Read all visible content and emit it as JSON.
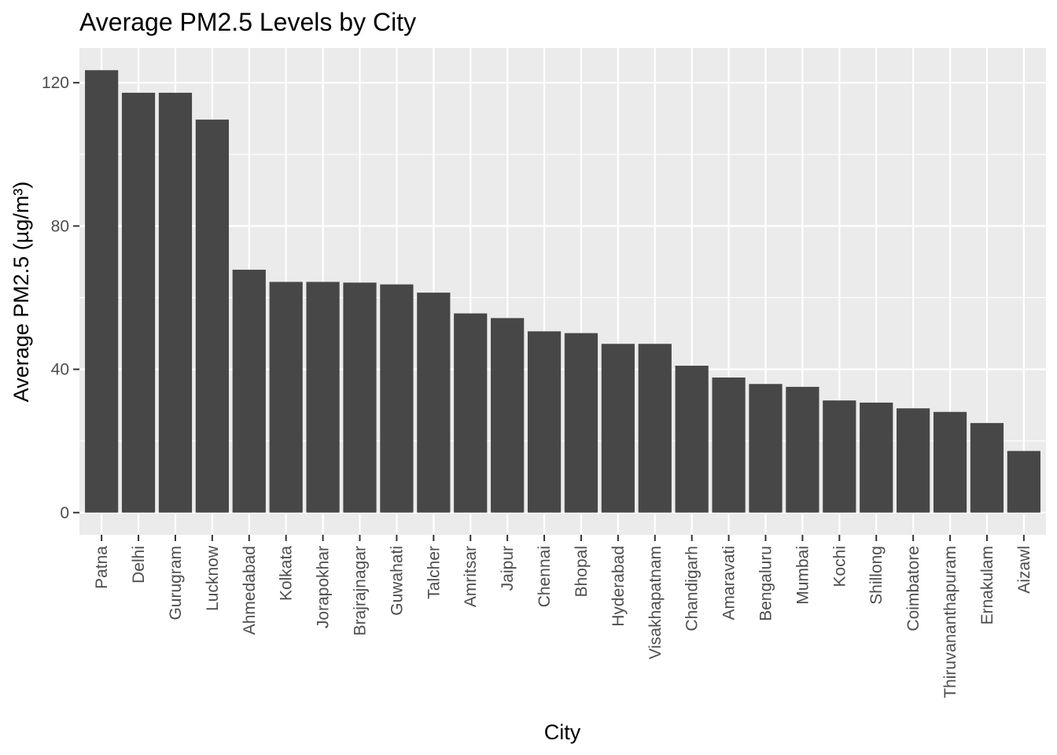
{
  "chart_data": {
    "type": "bar",
    "title": "Average PM2.5 Levels by City",
    "xlabel": "City",
    "ylabel": "Average PM2.5 (µg/m³)",
    "categories": [
      "Patna",
      "Delhi",
      "Gurugram",
      "Lucknow",
      "Ahmedabad",
      "Kolkata",
      "Jorapokhar",
      "Brajrajnagar",
      "Guwahati",
      "Talcher",
      "Amritsar",
      "Jaipur",
      "Chennai",
      "Bhopal",
      "Hyderabad",
      "Visakhapatnam",
      "Chandigarh",
      "Amaravati",
      "Bengaluru",
      "Mumbai",
      "Kochi",
      "Shillong",
      "Coimbatore",
      "Thiruvananthapuram",
      "Ernakulam",
      "Aizawl"
    ],
    "values": [
      123.5,
      117.2,
      117.2,
      109.7,
      67.8,
      64.4,
      64.4,
      64.2,
      63.7,
      61.4,
      55.6,
      54.3,
      50.6,
      50.1,
      47.1,
      47.1,
      41.0,
      37.7,
      35.9,
      35.1,
      31.3,
      30.7,
      29.1,
      28.1,
      25.0,
      17.2
    ],
    "yticks": [
      0,
      40,
      80,
      120
    ],
    "ylim": [
      -6.2,
      129.7
    ],
    "grid": true,
    "legend": "none",
    "colors": {
      "bar": "#474747",
      "panel": "#ebebeb",
      "grid": "#ffffff",
      "tick": "#333333"
    }
  }
}
